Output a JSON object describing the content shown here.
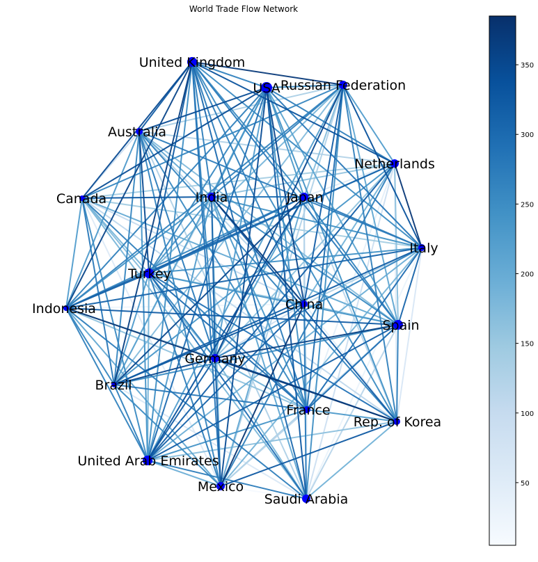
{
  "title": "World Trade Flow Network",
  "colors": {
    "node": "#0000ff",
    "cmap_low": "#f7fbff",
    "cmap_mid": "#6baed6",
    "cmap_high": "#08306b"
  },
  "colorbar": {
    "min": 5,
    "max": 385,
    "ticks": [
      "50",
      "100",
      "150",
      "200",
      "250",
      "300",
      "350"
    ]
  },
  "nodes": [
    {
      "id": "uk",
      "label": "United Kingdom"
    },
    {
      "id": "usa",
      "label": "USA"
    },
    {
      "id": "russia",
      "label": "Russian Federation"
    },
    {
      "id": "australia",
      "label": "Australia"
    },
    {
      "id": "netherlands",
      "label": "Netherlands"
    },
    {
      "id": "canada",
      "label": "Canada"
    },
    {
      "id": "india",
      "label": "India"
    },
    {
      "id": "japan",
      "label": "Japan"
    },
    {
      "id": "italy",
      "label": "Italy"
    },
    {
      "id": "turkey",
      "label": "Turkey"
    },
    {
      "id": "indonesia",
      "label": "Indonesia"
    },
    {
      "id": "china",
      "label": "China"
    },
    {
      "id": "spain",
      "label": "Spain"
    },
    {
      "id": "germany",
      "label": "Germany"
    },
    {
      "id": "brazil",
      "label": "Brazil"
    },
    {
      "id": "france",
      "label": "France"
    },
    {
      "id": "korea",
      "label": "Rep. of Korea"
    },
    {
      "id": "uae",
      "label": "United Arab Emirates"
    },
    {
      "id": "mexico",
      "label": "Mexico"
    },
    {
      "id": "saudi",
      "label": "Saudi Arabia"
    }
  ]
}
